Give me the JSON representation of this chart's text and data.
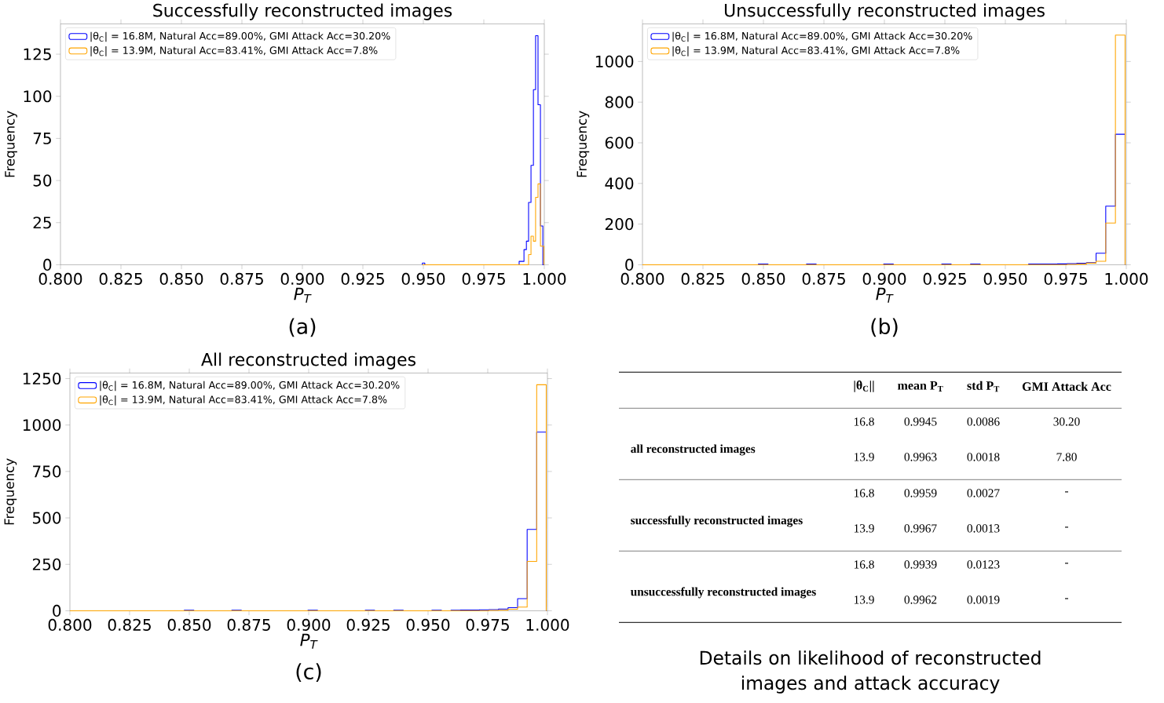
{
  "chart_data": [
    {
      "type": "histogram",
      "title": "Successfully reconstructed images",
      "xlabel": "P$_{T}$",
      "ylabel": "Frequency",
      "annotations": [
        "(a)"
      ],
      "legend": "top left",
      "xlim": [
        0.8,
        1.0
      ],
      "ylim": [
        0,
        143
      ],
      "xticks": [
        {
          "value": 0.8,
          "label": "0.800"
        },
        {
          "value": 0.825,
          "label": "0.825"
        },
        {
          "value": 0.85,
          "label": "0.850"
        },
        {
          "value": 0.875,
          "label": "0.875"
        },
        {
          "value": 0.9,
          "label": "0.900"
        },
        {
          "value": 0.925,
          "label": "0.925"
        },
        {
          "value": 0.95,
          "label": "0.950"
        },
        {
          "value": 0.975,
          "label": "0.975"
        },
        {
          "value": 1.0,
          "label": "1.000"
        }
      ],
      "yticks": [
        0,
        25,
        50,
        75,
        100,
        125
      ],
      "bins": [
        0.9496,
        0.9506,
        0.9896,
        0.9906,
        0.9916,
        0.9926,
        0.9935,
        0.9945,
        0.9955,
        0.9964,
        0.9974,
        0.9984,
        0.9994,
        0.9998
      ],
      "series": [
        {
          "name": "|θ$_{C}$| = 16.8M, Natural Acc=89.00%, GMI Attack Acc=30.20%",
          "color": "#0000ff",
          "values": [
            1,
            0,
            2,
            2,
            9,
            14,
            37,
            59,
            104,
            136,
            95,
            23,
            0
          ]
        },
        {
          "name": "|θ$_{C}$| = 13.9M, Natural Acc=83.41%, GMI Attack Acc=7.8%",
          "color": "#ffa500",
          "values": [
            0,
            0,
            0,
            0,
            0,
            0,
            6,
            17,
            14,
            40,
            48,
            11,
            11
          ]
        }
      ]
    },
    {
      "type": "histogram",
      "title": "Unsuccessfully reconstructed images",
      "xlabel": "P$_{T}$",
      "ylabel": "Frequency",
      "annotations": [
        "(b)"
      ],
      "legend": "top left",
      "xlim": [
        0.8,
        1.0
      ],
      "ylim": [
        0,
        1185
      ],
      "xticks": [
        {
          "value": 0.8,
          "label": "0.800"
        },
        {
          "value": 0.825,
          "label": "0.825"
        },
        {
          "value": 0.85,
          "label": "0.850"
        },
        {
          "value": 0.875,
          "label": "0.875"
        },
        {
          "value": 0.9,
          "label": "0.900"
        },
        {
          "value": 0.925,
          "label": "0.925"
        },
        {
          "value": 0.95,
          "label": "0.950"
        },
        {
          "value": 0.975,
          "label": "0.975"
        },
        {
          "value": 1.0,
          "label": "1.000"
        }
      ],
      "yticks": [
        0,
        200,
        400,
        600,
        800,
        1000
      ],
      "bins": [
        0.8,
        0.804,
        0.808,
        0.812,
        0.816,
        0.8199,
        0.8239,
        0.8279,
        0.8319,
        0.8359,
        0.8399,
        0.8439,
        0.8479,
        0.8519,
        0.8558,
        0.8598,
        0.8638,
        0.8678,
        0.8718,
        0.8758,
        0.8798,
        0.8838,
        0.8878,
        0.8917,
        0.8957,
        0.8997,
        0.9037,
        0.9077,
        0.9117,
        0.9157,
        0.9197,
        0.9237,
        0.9276,
        0.9316,
        0.9356,
        0.9396,
        0.9436,
        0.9476,
        0.9516,
        0.9556,
        0.9596,
        0.9635,
        0.9675,
        0.9715,
        0.9755,
        0.9795,
        0.9835,
        0.9875,
        0.9915,
        0.9955,
        0.9995
      ],
      "series": [
        {
          "name": "|θ$_{C}$| = 16.8M, Natural Acc=89.00%, GMI Attack Acc=30.20%",
          "color": "#0000ff",
          "values": [
            0,
            0,
            0,
            0,
            0,
            0,
            0,
            0,
            0,
            0,
            0,
            0,
            3,
            0,
            0,
            0,
            0,
            3,
            0,
            0,
            0,
            0,
            0,
            0,
            0,
            3,
            0,
            0,
            0,
            0,
            0,
            3,
            0,
            0,
            3,
            0,
            0,
            0,
            0,
            0,
            3,
            3,
            3,
            4,
            5,
            7,
            10,
            57,
            288,
            642
          ]
        },
        {
          "name": "|θ$_{C}$| = 13.9M, Natural Acc=83.41%, GMI Attack Acc=7.8%",
          "color": "#ffa500",
          "values": [
            0,
            0,
            0,
            0,
            0,
            0,
            0,
            0,
            0,
            0,
            0,
            0,
            0,
            0,
            0,
            0,
            0,
            0,
            0,
            0,
            0,
            0,
            0,
            0,
            0,
            0,
            0,
            0,
            0,
            0,
            0,
            0,
            0,
            0,
            0,
            0,
            0,
            0,
            0,
            0,
            0,
            0,
            0,
            0,
            2,
            3,
            8,
            17,
            205,
            1130
          ]
        }
      ]
    },
    {
      "type": "histogram",
      "title": "All reconstructed images",
      "xlabel": "P$_{T}$",
      "ylabel": "Frequency",
      "annotations": [
        "(c)"
      ],
      "legend": "top left",
      "xlim": [
        0.8,
        1.0
      ],
      "ylim": [
        0,
        1280
      ],
      "xticks": [
        {
          "value": 0.8,
          "label": "0.800"
        },
        {
          "value": 0.825,
          "label": "0.825"
        },
        {
          "value": 0.85,
          "label": "0.850"
        },
        {
          "value": 0.875,
          "label": "0.875"
        },
        {
          "value": 0.9,
          "label": "0.900"
        },
        {
          "value": 0.925,
          "label": "0.925"
        },
        {
          "value": 0.95,
          "label": "0.950"
        },
        {
          "value": 0.975,
          "label": "0.975"
        },
        {
          "value": 1.0,
          "label": "1.000"
        }
      ],
      "yticks": [
        0,
        250,
        500,
        750,
        1000,
        1250
      ],
      "bins": [
        0.8,
        0.804,
        0.808,
        0.812,
        0.816,
        0.8199,
        0.8239,
        0.8279,
        0.8319,
        0.8359,
        0.8399,
        0.8439,
        0.8479,
        0.8519,
        0.8558,
        0.8598,
        0.8638,
        0.8678,
        0.8718,
        0.8758,
        0.8798,
        0.8838,
        0.8878,
        0.8917,
        0.8957,
        0.8997,
        0.9037,
        0.9077,
        0.9117,
        0.9157,
        0.9197,
        0.9237,
        0.9276,
        0.9316,
        0.9356,
        0.9396,
        0.9436,
        0.9476,
        0.9516,
        0.9556,
        0.9596,
        0.9635,
        0.9675,
        0.9715,
        0.9755,
        0.9795,
        0.9835,
        0.9875,
        0.9915,
        0.9955,
        0.9995
      ],
      "series": [
        {
          "name": "|θ$_{C}$| = 16.8M, Natural Acc=89.00%, GMI Attack Acc=30.20%",
          "color": "#0000ff",
          "values": [
            0,
            0,
            0,
            0,
            0,
            0,
            0,
            0,
            0,
            0,
            0,
            0,
            3,
            0,
            0,
            0,
            0,
            3,
            0,
            0,
            0,
            0,
            0,
            0,
            0,
            3,
            0,
            0,
            0,
            0,
            0,
            3,
            0,
            0,
            3,
            0,
            0,
            0,
            3,
            0,
            3,
            4,
            4,
            5,
            6,
            9,
            17,
            65,
            438,
            962
          ]
        },
        {
          "name": "|θ$_{C}$| = 13.9M, Natural Acc=83.41%, GMI Attack Acc=7.8%",
          "color": "#ffa500",
          "values": [
            0,
            0,
            0,
            0,
            0,
            0,
            0,
            0,
            0,
            0,
            0,
            0,
            0,
            0,
            0,
            0,
            0,
            0,
            0,
            0,
            0,
            0,
            0,
            0,
            0,
            0,
            0,
            0,
            0,
            0,
            0,
            0,
            0,
            0,
            0,
            0,
            0,
            0,
            0,
            0,
            0,
            0,
            0,
            0,
            2,
            3,
            8,
            20,
            266,
            1217
          ]
        }
      ]
    },
    {
      "type": "other",
      "title": "Details on likelihood of reconstructed images and attack accuracy",
      "categories": [
        null,
        "|θ$_{C}$||",
        "mean P$_{T}$",
        "std P$_{T}$",
        "GMI Attack Acc"
      ],
      "y_categories": [
        "all reconstructed images",
        "successfully reconstructed images",
        "unsuccessfully reconstructed images"
      ],
      "cell_labels": [
        [
          "16.8",
          "0.9945",
          "0.0086",
          "30.20"
        ],
        [
          "13.9",
          "0.9963",
          "0.0018",
          "7.80"
        ],
        [
          "16.8",
          "0.9959",
          "0.0027",
          "-"
        ],
        [
          "13.9",
          "0.9967",
          "0.0013",
          "-"
        ],
        [
          "16.8",
          "0.9939",
          "0.0123",
          "-"
        ],
        [
          "13.9",
          "0.9962",
          "0.0019",
          "-"
        ]
      ]
    }
  ]
}
